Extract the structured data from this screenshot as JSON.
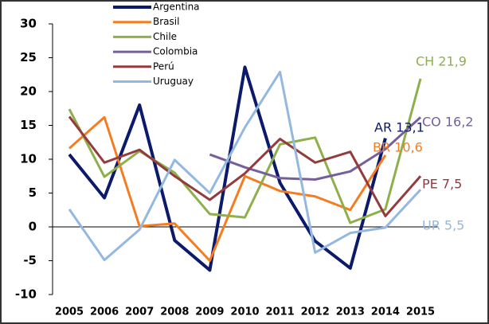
{
  "chart_data": {
    "type": "line",
    "categories": [
      "2005",
      "2006",
      "2007",
      "2008",
      "2009",
      "2010",
      "2011",
      "2012",
      "2013",
      "2014",
      "2015"
    ],
    "series": [
      {
        "name": "Argentina",
        "color": "#0c1a6b",
        "values": [
          10.7,
          4.3,
          18.0,
          -2.0,
          -6.4,
          23.6,
          6.5,
          -2.1,
          -6.1,
          13.1,
          null
        ]
      },
      {
        "name": "Brasil",
        "color": "#f57d20",
        "values": [
          11.6,
          16.2,
          0.1,
          0.5,
          -5.0,
          7.5,
          5.3,
          4.5,
          2.5,
          10.6,
          null
        ]
      },
      {
        "name": "Chile",
        "color": "#8db04a",
        "values": [
          17.4,
          7.4,
          11.2,
          8.0,
          1.9,
          1.4,
          12.2,
          13.2,
          0.6,
          2.6,
          21.9
        ]
      },
      {
        "name": "Colombia",
        "color": "#76609c",
        "values": [
          null,
          null,
          null,
          null,
          10.7,
          8.8,
          7.2,
          7.0,
          8.2,
          11.5,
          16.2
        ]
      },
      {
        "name": "Perú",
        "color": "#933b3d",
        "values": [
          16.3,
          9.5,
          11.4,
          7.5,
          4.0,
          7.9,
          13.0,
          9.5,
          11.1,
          1.6,
          7.5
        ]
      },
      {
        "name": "Uruguay",
        "color": "#94b8e0",
        "values": [
          2.6,
          -4.9,
          -0.4,
          9.9,
          5.0,
          14.7,
          22.9,
          -3.8,
          -0.9,
          -0.1,
          5.5
        ]
      }
    ],
    "annotations": [
      {
        "text": "AR 13,1",
        "color": "#0c1a6b"
      },
      {
        "text": "BR 10,6",
        "color": "#f57d20"
      },
      {
        "text": "CH 21,9",
        "color": "#8db04a"
      },
      {
        "text": "CO 16,2",
        "color": "#76609c"
      },
      {
        "text": "PE 7,5",
        "color": "#933b3d"
      },
      {
        "text": "UR 5,5",
        "color": "#94b8e0"
      }
    ],
    "ylim": [
      -10,
      30
    ],
    "yticks": [
      -10,
      -5,
      0,
      5,
      10,
      15,
      20,
      25,
      30
    ]
  }
}
